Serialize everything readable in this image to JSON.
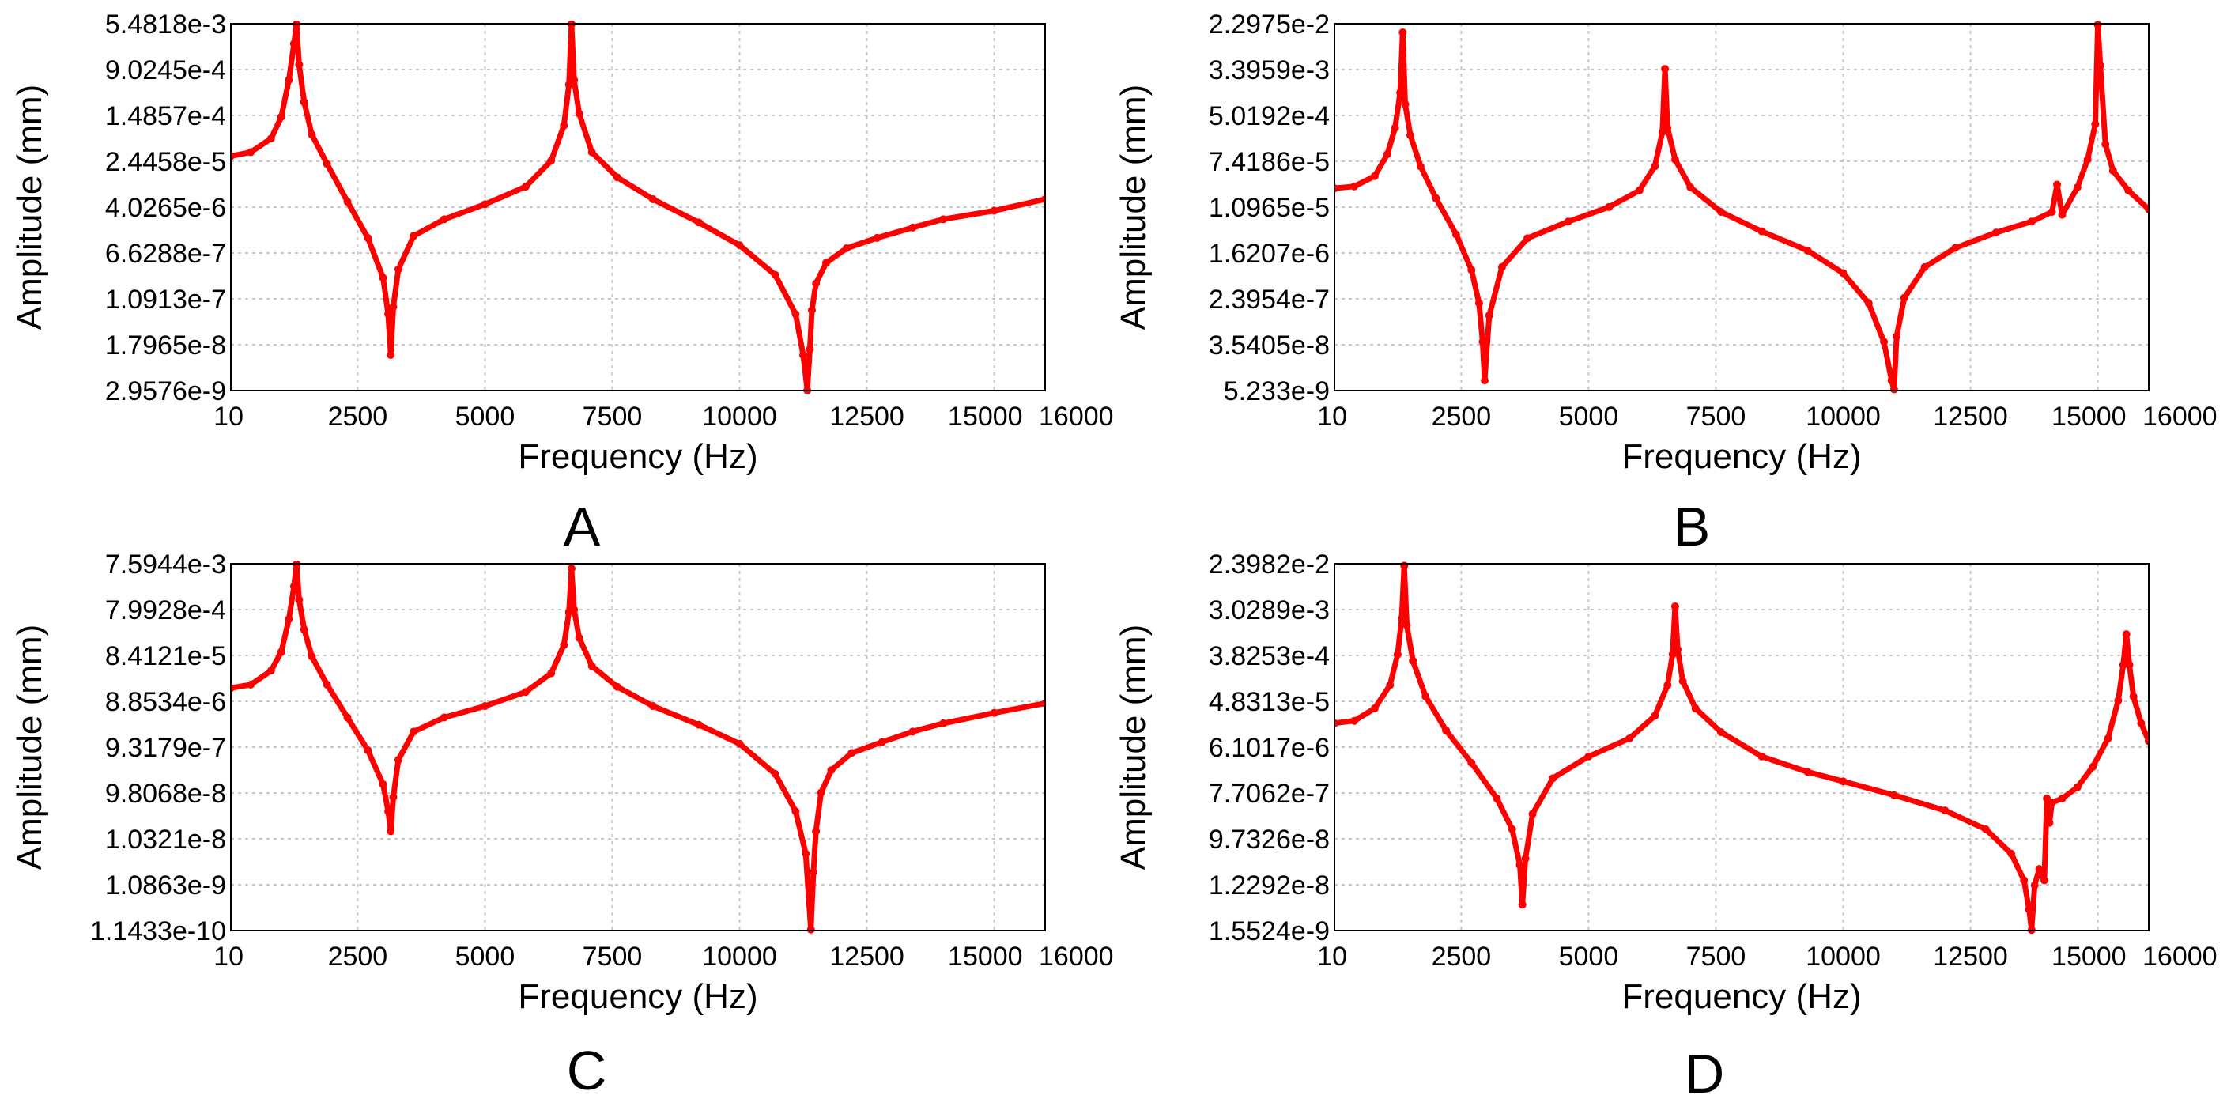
{
  "figure": {
    "panels_order": [
      "A",
      "B",
      "C",
      "D"
    ]
  },
  "colors": {
    "series": "#ff0000",
    "grid": "#c8c8c8",
    "frame": "#000000",
    "background": "#ffffff"
  },
  "chart_data": [
    {
      "panel": "A",
      "type": "line",
      "scale_y": "log",
      "xlabel": "Frequency (Hz)",
      "ylabel": "Amplitude (mm)",
      "xlim": [
        10,
        16000
      ],
      "x_ticks": [
        10,
        2500,
        5000,
        7500,
        10000,
        12500,
        15000,
        16000
      ],
      "x_tick_labels": [
        "10",
        "2500",
        "5000",
        "7500",
        "10000",
        "12500",
        "15000",
        "16000"
      ],
      "ylim": [
        2.9576e-09,
        0.0054818
      ],
      "y_ticks": [
        0.0054818,
        0.00090245,
        0.00014857,
        2.4458e-05,
        4.0265e-06,
        6.6288e-07,
        1.0913e-07,
        1.7965e-08,
        2.9576e-09
      ],
      "y_tick_labels": [
        "5.4818e-3",
        "9.0245e-4",
        "1.4857e-4",
        "2.4458e-5",
        "4.0265e-6",
        "6.6288e-7",
        "1.0913e-7",
        "1.7965e-8",
        "2.9576e-9"
      ],
      "series": [
        {
          "name": "Amplitude",
          "x": [
            10,
            400,
            800,
            1000,
            1150,
            1250,
            1300,
            1350,
            1450,
            1600,
            1900,
            2300,
            2700,
            3000,
            3100,
            3150,
            3200,
            3300,
            3600,
            4200,
            5000,
            5800,
            6300,
            6550,
            6650,
            6700,
            6750,
            6850,
            7100,
            7600,
            8300,
            9200,
            10000,
            10700,
            11100,
            11250,
            11330,
            11380,
            11420,
            11500,
            11700,
            12100,
            12700,
            13400,
            14000,
            15000,
            16000
          ],
          "y": [
            3e-05,
            3.5e-05,
            6e-05,
            0.00014,
            0.0006,
            0.0025,
            0.0054,
            0.0011,
            0.00025,
            7e-05,
            2.2e-05,
            5e-06,
            1.2e-06,
            2.5e-07,
            6e-08,
            1.2e-08,
            8e-08,
            3.5e-07,
            1.3e-06,
            2.5e-06,
            4.5e-06,
            9e-06,
            2.5e-05,
            0.0001,
            0.0005,
            0.0054,
            0.0006,
            0.00016,
            3.5e-05,
            1.3e-05,
            5.5e-06,
            2.2e-06,
            9e-07,
            2.8e-07,
            6e-08,
            1.2e-08,
            3e-09,
            1.5e-08,
            7e-08,
            2e-07,
            4.5e-07,
            8e-07,
            1.2e-06,
            1.8e-06,
            2.5e-06,
            3.5e-06,
            5.5e-06
          ]
        }
      ],
      "caption": "A"
    },
    {
      "panel": "B",
      "type": "line",
      "scale_y": "log",
      "xlabel": "Frequency (Hz)",
      "ylabel": "Amplitude (mm)",
      "xlim": [
        10,
        16000
      ],
      "x_ticks": [
        10,
        2500,
        5000,
        7500,
        10000,
        12500,
        15000,
        16000
      ],
      "x_tick_labels": [
        "10",
        "2500",
        "5000",
        "7500",
        "10000",
        "12500",
        "15000",
        "16000"
      ],
      "ylim": [
        5.233e-09,
        0.022975
      ],
      "y_ticks": [
        0.022975,
        0.0033959,
        0.00050192,
        7.4186e-05,
        1.0965e-05,
        1.6207e-06,
        2.3954e-07,
        3.5405e-08,
        5.233e-09
      ],
      "y_tick_labels": [
        "2.2975e-2",
        "3.3959e-3",
        "5.0192e-4",
        "7.4186e-5",
        "1.0965e-5",
        "1.6207e-6",
        "2.3954e-7",
        "3.5405e-8",
        "5.233e-9"
      ],
      "series": [
        {
          "name": "Amplitude",
          "x": [
            10,
            400,
            800,
            1050,
            1200,
            1300,
            1350,
            1400,
            1500,
            1700,
            2000,
            2400,
            2700,
            2850,
            2920,
            2960,
            3050,
            3300,
            3800,
            4600,
            5400,
            6000,
            6300,
            6450,
            6500,
            6550,
            6700,
            7000,
            7600,
            8400,
            9300,
            10000,
            10500,
            10800,
            10950,
            11000,
            11050,
            11200,
            11600,
            12200,
            13000,
            13700,
            14100,
            14200,
            14300,
            14600,
            14800,
            14950,
            15000,
            15050,
            15150,
            15300,
            15600,
            16000
          ],
          "y": [
            2.4e-05,
            2.6e-05,
            4e-05,
            0.0001,
            0.0003,
            0.0013,
            0.016,
            0.0008,
            0.00022,
            6e-05,
            1.6e-05,
            3.5e-06,
            8e-07,
            2e-07,
            4e-08,
            8e-09,
            1.2e-07,
            9e-07,
            3e-06,
            6e-06,
            1.1e-05,
            2.2e-05,
            6e-05,
            0.00025,
            0.0035,
            0.0003,
            8e-05,
            2.5e-05,
            9e-06,
            4e-06,
            1.8e-06,
            7e-07,
            2e-07,
            4e-08,
            8e-09,
            5.5e-09,
            5e-08,
            2.5e-07,
            9e-07,
            2e-06,
            3.8e-06,
            6e-06,
            9e-06,
            2.8e-05,
            8e-06,
            2.5e-05,
            8e-05,
            0.00035,
            0.022,
            0.004,
            0.00015,
            5e-05,
            2.2e-05,
            1e-05
          ]
        }
      ],
      "caption": "B"
    },
    {
      "panel": "C",
      "type": "line",
      "scale_y": "log",
      "xlabel": "Frequency (Hz)",
      "ylabel": "Amplitude (mm)",
      "xlim": [
        10,
        16000
      ],
      "x_ticks": [
        10,
        2500,
        5000,
        7500,
        10000,
        12500,
        15000,
        16000
      ],
      "x_tick_labels": [
        "10",
        "2500",
        "5000",
        "7500",
        "10000",
        "12500",
        "15000",
        "16000"
      ],
      "ylim": [
        1.1433e-10,
        0.0075944
      ],
      "y_ticks": [
        0.0075944,
        0.00079928,
        8.4121e-05,
        8.8534e-06,
        9.3179e-07,
        9.8068e-08,
        1.0321e-08,
        1.0863e-09,
        1.1433e-10
      ],
      "y_tick_labels": [
        "7.5944e-3",
        "7.9928e-4",
        "8.4121e-5",
        "8.8534e-6",
        "9.3179e-7",
        "9.8068e-8",
        "1.0321e-8",
        "1.0863e-9",
        "1.1433e-10"
      ],
      "series": [
        {
          "name": "Amplitude",
          "x": [
            10,
            400,
            800,
            1000,
            1150,
            1250,
            1300,
            1350,
            1450,
            1600,
            1900,
            2300,
            2700,
            3000,
            3100,
            3150,
            3200,
            3300,
            3600,
            4200,
            5000,
            5800,
            6300,
            6550,
            6650,
            6700,
            6750,
            6850,
            7100,
            7600,
            8300,
            9200,
            10000,
            10700,
            11100,
            11300,
            11400,
            11450,
            11500,
            11600,
            11800,
            12200,
            12800,
            13400,
            14000,
            15000,
            16000
          ],
          "y": [
            1.7e-05,
            2e-05,
            4e-05,
            0.0001,
            0.0005,
            0.0025,
            0.0075,
            0.0013,
            0.0003,
            8e-05,
            2e-05,
            4e-06,
            8e-07,
            1.5e-07,
            4e-08,
            1.5e-08,
            8e-08,
            5e-07,
            2e-06,
            4e-06,
            7e-06,
            1.4e-05,
            3.5e-05,
            0.00014,
            0.0007,
            0.006,
            0.0008,
            0.0002,
            5e-05,
            1.8e-05,
            7e-06,
            2.8e-06,
            1.1e-06,
            2.5e-07,
            4e-08,
            5e-09,
            1.2e-10,
            2e-09,
            1.5e-08,
            1e-07,
            3e-07,
            7e-07,
            1.2e-06,
            2e-06,
            3e-06,
            5e-06,
            8e-06
          ]
        }
      ],
      "caption": "C"
    },
    {
      "panel": "D",
      "type": "line",
      "scale_y": "log",
      "xlabel": "Frequency (Hz)",
      "ylabel": "Amplitude (mm)",
      "xlim": [
        10,
        16000
      ],
      "x_ticks": [
        10,
        2500,
        5000,
        7500,
        10000,
        12500,
        15000,
        16000
      ],
      "x_tick_labels": [
        "10",
        "2500",
        "5000",
        "7500",
        "10000",
        "12500",
        "15000",
        "16000"
      ],
      "ylim": [
        1.5524e-09,
        0.023982
      ],
      "y_ticks": [
        0.023982,
        0.0030289,
        0.00038253,
        4.8313e-05,
        6.1017e-06,
        7.7062e-07,
        9.7326e-08,
        1.2292e-08,
        1.5524e-09
      ],
      "y_tick_labels": [
        "2.3982e-2",
        "3.0289e-3",
        "3.8253e-4",
        "4.8313e-5",
        "6.1017e-6",
        "7.7062e-7",
        "9.7326e-8",
        "1.2292e-8",
        "1.5524e-9"
      ],
      "series": [
        {
          "name": "Amplitude",
          "x": [
            10,
            400,
            800,
            1100,
            1250,
            1330,
            1380,
            1430,
            1550,
            1800,
            2200,
            2700,
            3200,
            3500,
            3650,
            3700,
            3760,
            3900,
            4300,
            5000,
            5800,
            6300,
            6550,
            6650,
            6700,
            6750,
            6850,
            7100,
            7600,
            8400,
            9300,
            10000,
            11000,
            12000,
            12800,
            13300,
            13550,
            13650,
            13700,
            13760,
            13850,
            13950,
            14000,
            14050,
            14100,
            14300,
            14600,
            14900,
            15200,
            15400,
            15500,
            15560,
            15620,
            15700,
            15850,
            16000
          ],
          "y": [
            1.8e-05,
            2e-05,
            3.5e-05,
            0.0001,
            0.0004,
            0.002,
            0.022,
            0.0015,
            0.0003,
            6e-05,
            1.3e-05,
            3e-06,
            6e-07,
            1.5e-07,
            3e-08,
            5e-09,
            4e-08,
            3e-07,
            1.5e-06,
            4e-06,
            9e-06,
            2.5e-05,
            0.0001,
            0.0004,
            0.0035,
            0.0005,
            0.00012,
            3.5e-05,
            1.2e-05,
            4e-06,
            2e-06,
            1.3e-06,
            7e-07,
            3.5e-07,
            1.5e-07,
            5e-08,
            1.5e-08,
            4e-09,
            1.6e-09,
            1.2e-08,
            2.5e-08,
            1.5e-08,
            6e-07,
            2e-07,
            5e-07,
            6e-07,
            1e-06,
            2.5e-06,
            9e-06,
            5e-05,
            0.00025,
            0.001,
            0.00025,
            6e-05,
            1.8e-05,
            8e-06
          ]
        }
      ],
      "caption": "D"
    }
  ]
}
